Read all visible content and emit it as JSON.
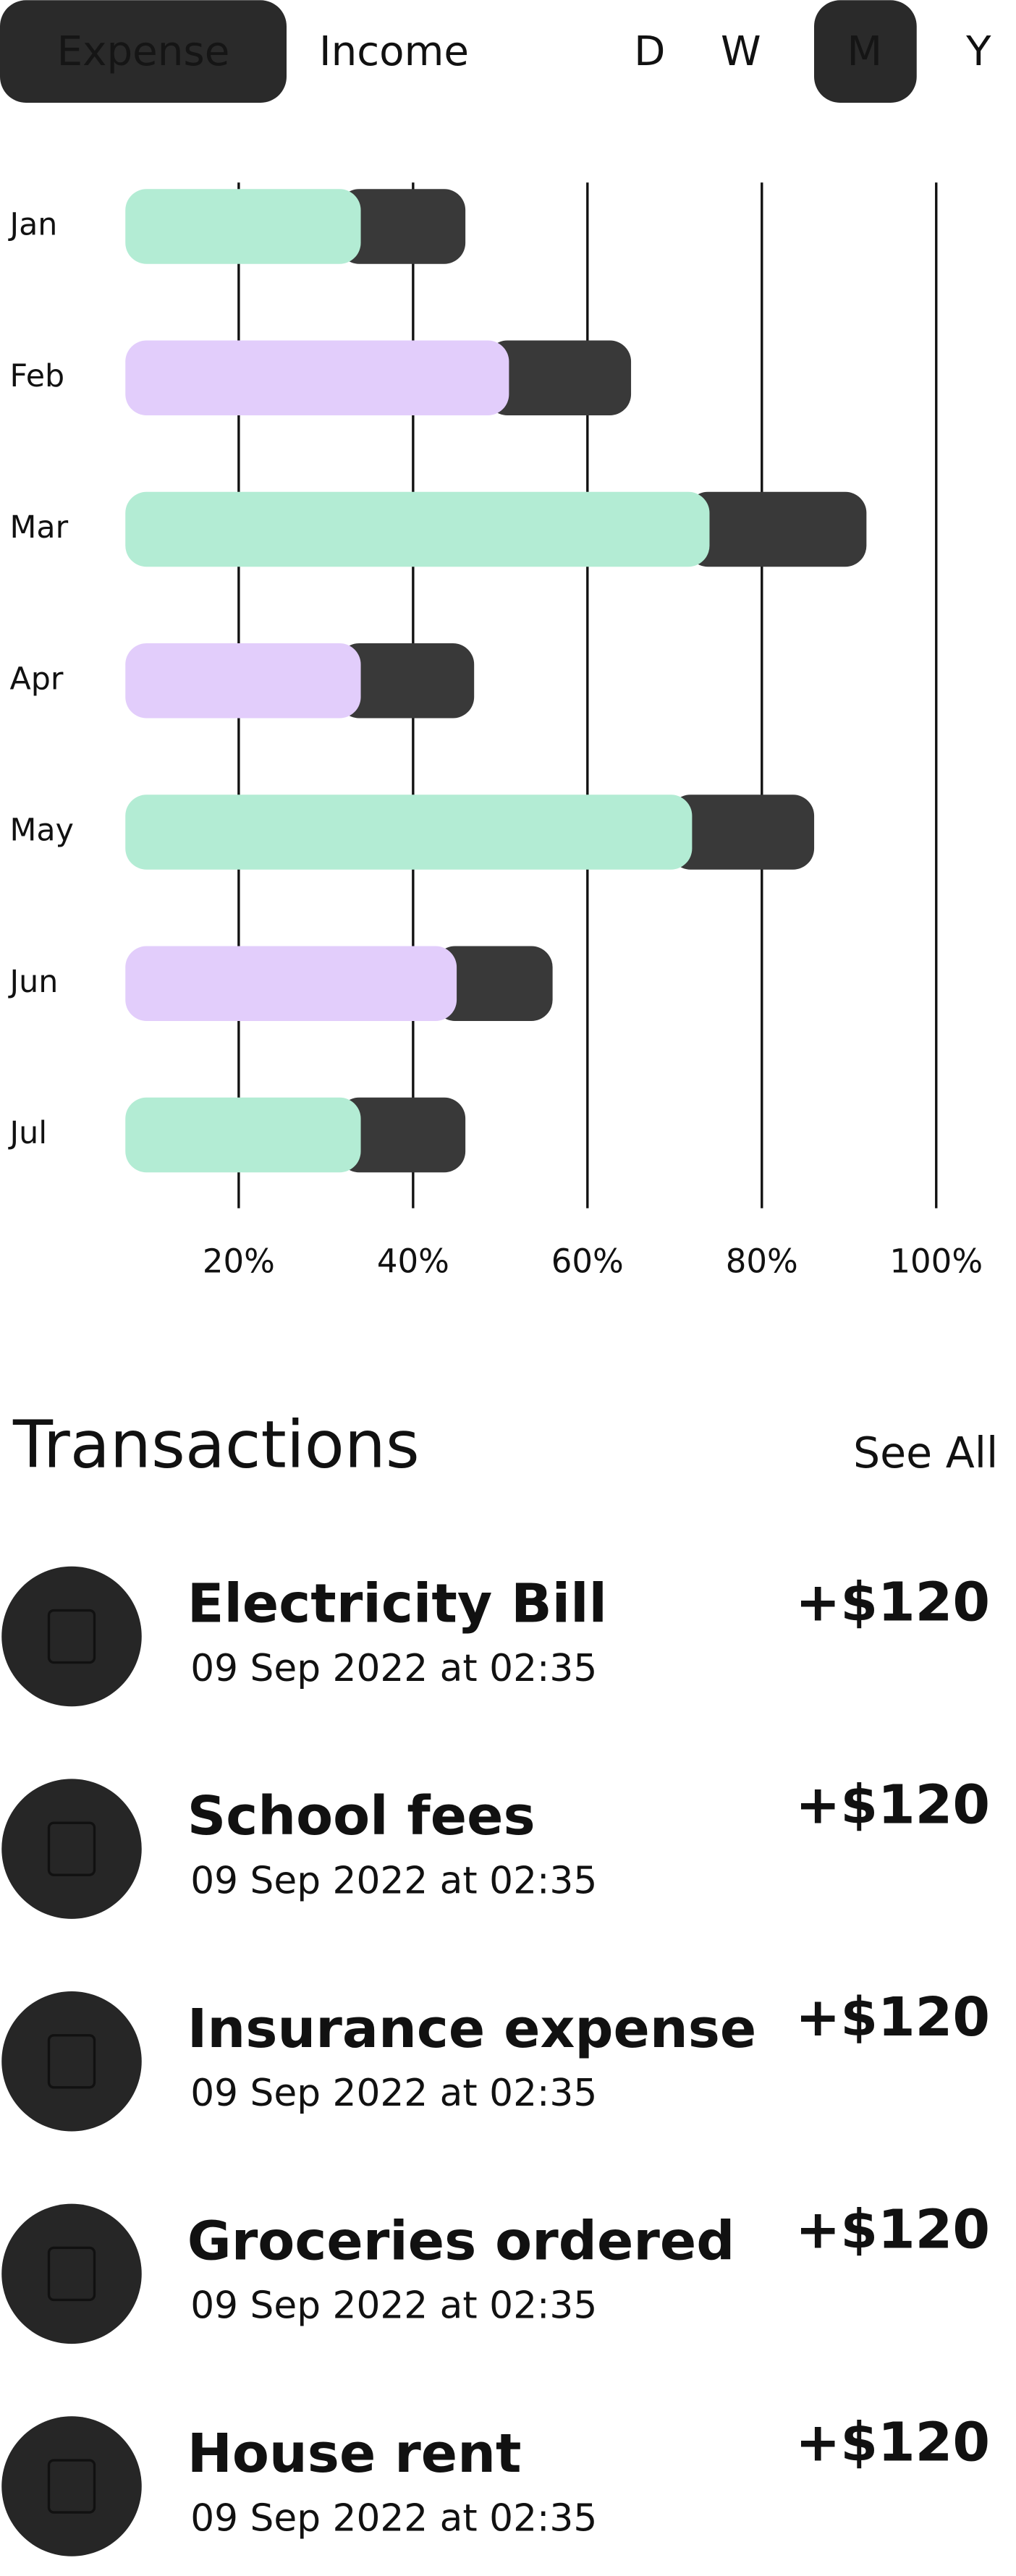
{
  "tabs": {
    "type": [
      "Expense",
      "Income"
    ],
    "period": [
      "D",
      "W",
      "M",
      "Y"
    ]
  },
  "chart_data": {
    "type": "bar",
    "orientation": "horizontal",
    "stacked": true,
    "categories": [
      "Jan",
      "Feb",
      "Mar",
      "Apr",
      "May",
      "Jun",
      "Jul"
    ],
    "series": [
      {
        "color": "#b3ecd4",
        "colors": [
          "#b3ecd4",
          "#e2cdfb",
          "#b3ecd4",
          "#e2cdfb",
          "#b3ecd4",
          "#e2cdfb",
          "#b3ecd4"
        ],
        "values": [
          34,
          51,
          74,
          34,
          72,
          45,
          34
        ]
      },
      {
        "color": "#393939",
        "values": [
          12,
          14,
          18,
          13,
          14,
          11,
          12
        ]
      }
    ],
    "xlim": [
      7,
      100
    ],
    "xticks": [
      {
        "value": 20,
        "label": "20%"
      },
      {
        "value": 40,
        "label": "40%"
      },
      {
        "value": 60,
        "label": "60%"
      },
      {
        "value": 80,
        "label": "80%"
      },
      {
        "value": 100,
        "label": "100%"
      }
    ],
    "grid": true
  },
  "transactions": {
    "title": "Transactions",
    "see_all": "See All",
    "items": [
      {
        "name": "Electricity Bill",
        "date": "09 Sep 2022 at 02:35",
        "amount": "+$120"
      },
      {
        "name": "School fees",
        "date": "09 Sep 2022 at 02:35",
        "amount": "+$120"
      },
      {
        "name": "Insurance expense",
        "date": "09 Sep 2022 at 02:35",
        "amount": "+$120"
      },
      {
        "name": "Groceries ordered",
        "date": "09 Sep 2022 at 02:35",
        "amount": "+$120"
      },
      {
        "name": "House rent",
        "date": "09 Sep 2022 at 02:35",
        "amount": "+$120"
      }
    ]
  }
}
